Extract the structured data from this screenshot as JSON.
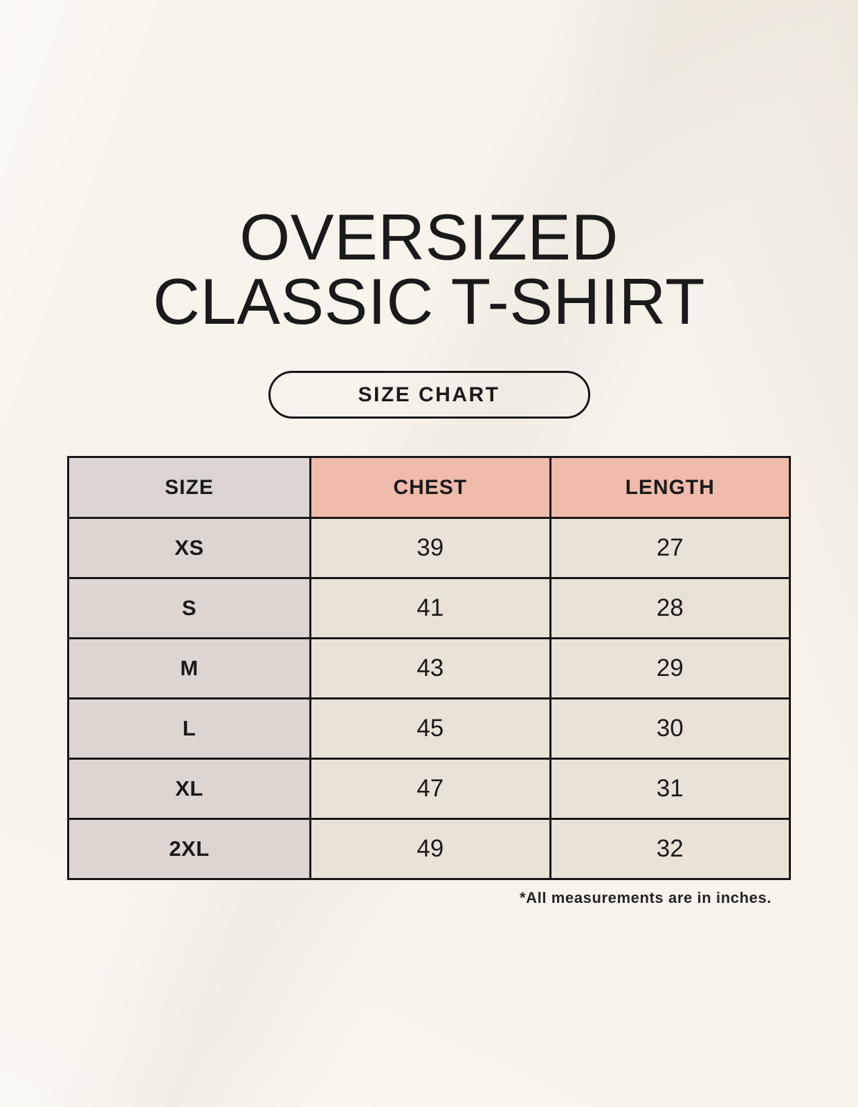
{
  "title": {
    "line1": "OVERSIZED",
    "line2": "CLASSIC T-SHIRT"
  },
  "badge": {
    "label": "SIZE CHART"
  },
  "footnote": "*All measurements are in inches.",
  "colors": {
    "page_bg": "#f8f4ec",
    "text": "#1a1a1a",
    "border": "#161616",
    "header_size_bg": "#dcd5d1",
    "header_measure_bg": "#efbbaa",
    "body_size_bg": "#ddd6d0",
    "body_value_bg": "#e9e2d6"
  },
  "chart_data": {
    "type": "table",
    "title": "OVERSIZED CLASSIC T-SHIRT",
    "subtitle": "SIZE CHART",
    "units": "inches",
    "columns": [
      "SIZE",
      "CHEST",
      "LENGTH"
    ],
    "rows": [
      {
        "size": "XS",
        "chest": 39,
        "length": 27
      },
      {
        "size": "S",
        "chest": 41,
        "length": 28
      },
      {
        "size": "M",
        "chest": 43,
        "length": 29
      },
      {
        "size": "L",
        "chest": 45,
        "length": 30
      },
      {
        "size": "XL",
        "chest": 47,
        "length": 31
      },
      {
        "size": "2XL",
        "chest": 49,
        "length": 32
      }
    ],
    "annotation": "*All measurements are in inches."
  }
}
